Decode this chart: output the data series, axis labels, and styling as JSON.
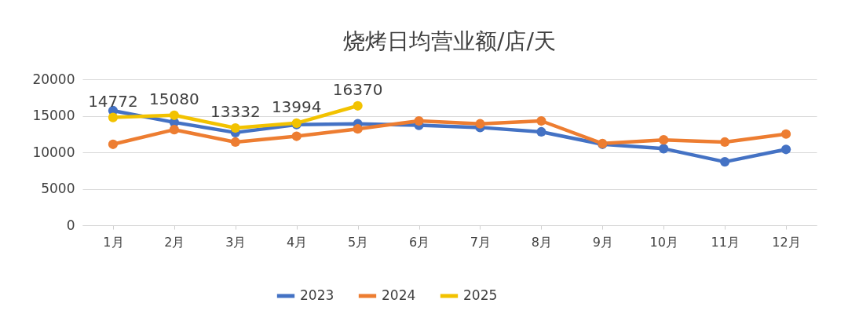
{
  "chart_data": {
    "type": "line",
    "title": "烧烤日均营业额/店/天",
    "categories": [
      "1月",
      "2月",
      "3月",
      "4月",
      "5月",
      "6月",
      "7月",
      "8月",
      "9月",
      "10月",
      "11月",
      "12月"
    ],
    "ylim": [
      0,
      20000
    ],
    "yticks": [
      0,
      5000,
      10000,
      15000,
      20000
    ],
    "grid": "y",
    "legend": "bottom",
    "marker": "circle",
    "line_style": "solid",
    "series": [
      {
        "name": "2023",
        "color": "#4472c4",
        "values": [
          15700,
          14100,
          12700,
          13800,
          13900,
          13700,
          13400,
          12800,
          11100,
          10500,
          8700,
          10400
        ]
      },
      {
        "name": "2024",
        "color": "#ed7d31",
        "values": [
          11100,
          13100,
          11400,
          12200,
          13200,
          14300,
          13900,
          14300,
          11200,
          11700,
          11400,
          12500
        ]
      },
      {
        "name": "2025",
        "color": "#f2c200",
        "values": [
          14772,
          15080,
          13332,
          13994,
          16370,
          null,
          null,
          null,
          null,
          null,
          null,
          null
        ],
        "value_labels": [
          "14772",
          "15080",
          "13332",
          "13994",
          "16370",
          null,
          null,
          null,
          null,
          null,
          null,
          null
        ]
      }
    ]
  }
}
